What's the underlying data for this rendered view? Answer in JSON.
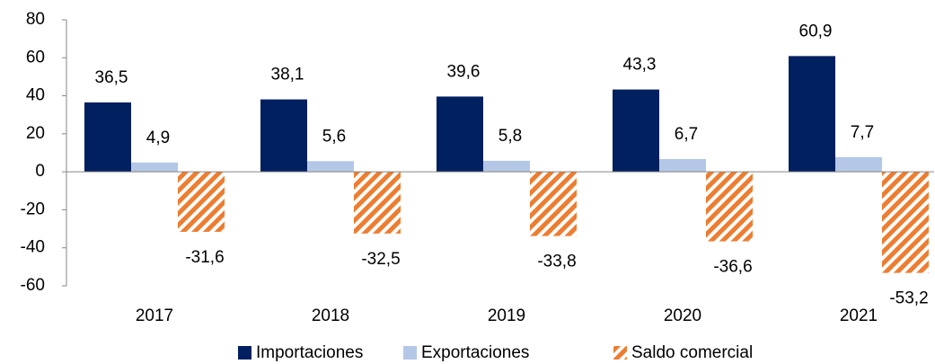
{
  "chart_data": {
    "type": "bar",
    "categories": [
      "2017",
      "2018",
      "2019",
      "2020",
      "2021"
    ],
    "series": [
      {
        "name": "Importaciones",
        "color": "#002060",
        "values": [
          36.5,
          38.1,
          39.6,
          43.3,
          60.9
        ],
        "value_labels": [
          "36,5",
          "38,1",
          "39,6",
          "43,3",
          "60,9"
        ]
      },
      {
        "name": "Exportaciones",
        "color": "#B4C7E7",
        "values": [
          4.9,
          5.6,
          5.8,
          6.7,
          7.7
        ],
        "value_labels": [
          "4,9",
          "5,6",
          "5,8",
          "6,7",
          "7,7"
        ]
      },
      {
        "name": "Saldo comercial",
        "color": "#ED7D31",
        "hatch": true,
        "values": [
          -31.6,
          -32.5,
          -33.8,
          -36.6,
          -53.2
        ],
        "value_labels": [
          "-31,6",
          "-32,5",
          "-33,8",
          "-36,6",
          "-53,2"
        ]
      }
    ],
    "ylim": [
      -60,
      80
    ],
    "yticks": [
      -60,
      -40,
      -20,
      0,
      20,
      40,
      60,
      80
    ],
    "legend": "bottom"
  }
}
